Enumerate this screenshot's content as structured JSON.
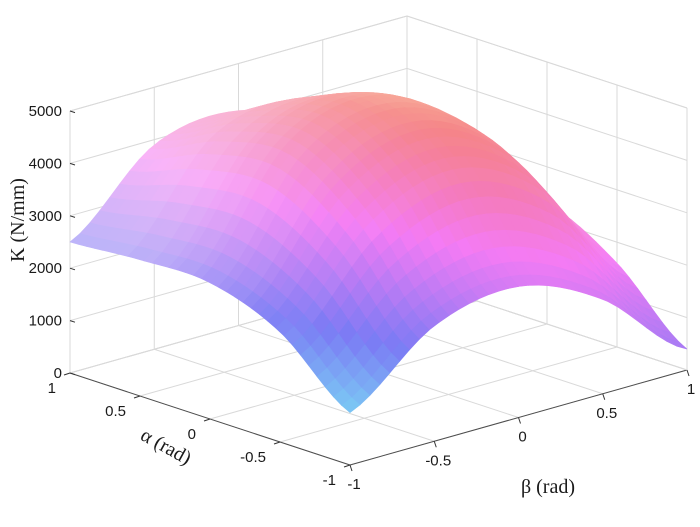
{
  "chart_data": {
    "type": "surface",
    "title": "",
    "xlabel": "β  (rad)",
    "ylabel": "α (rad)",
    "zlabel": "K (N/mm)",
    "xlim": [
      -1,
      1
    ],
    "ylim": [
      -1,
      1
    ],
    "zlim": [
      0,
      5000
    ],
    "x_ticks": [
      "-1",
      "-0.5",
      "0",
      "0.5",
      "1"
    ],
    "y_ticks": [
      "-1",
      "-0.5",
      "0",
      "0.5",
      "1"
    ],
    "z_ticks": [
      "0",
      "1000",
      "2000",
      "3000",
      "4000",
      "5000"
    ],
    "grid": true,
    "colormap": "pastel hsv",
    "x": [
      -1,
      -0.5,
      0,
      0.5,
      1
    ],
    "y": [
      -1,
      -0.5,
      0,
      0.5,
      1
    ],
    "z": [
      [
        1000,
        2200,
        2500,
        1800,
        400
      ],
      [
        2100,
        3800,
        4400,
        3600,
        1600
      ],
      [
        2600,
        4700,
        5200,
        4300,
        2300
      ],
      [
        2600,
        4500,
        4800,
        3900,
        2100
      ],
      [
        2500,
        3900,
        4100,
        3300,
        1500
      ]
    ]
  }
}
